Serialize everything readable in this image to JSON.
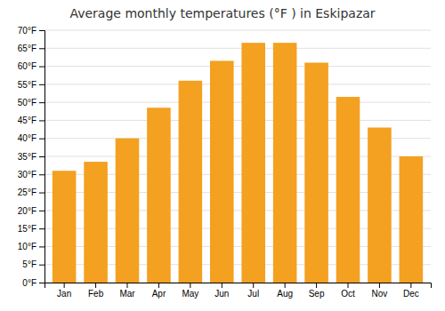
{
  "chart_data": {
    "type": "bar",
    "title": "Average monthly temperatures (°F ) in Eskipazar",
    "categories": [
      "Jan",
      "Feb",
      "Mar",
      "Apr",
      "May",
      "Jun",
      "Jul",
      "Aug",
      "Sep",
      "Oct",
      "Nov",
      "Dec"
    ],
    "values": [
      31,
      33.5,
      40,
      48.5,
      56,
      61.5,
      66.5,
      66.5,
      61,
      51.5,
      43,
      35
    ],
    "color": "#F4A020",
    "ylim": [
      0,
      70
    ],
    "yticks": [
      {
        "value": 0,
        "label": "0°F"
      },
      {
        "value": 5,
        "label": "5°F"
      },
      {
        "value": 10,
        "label": "10°F"
      },
      {
        "value": 15,
        "label": "15°F"
      },
      {
        "value": 20,
        "label": "20°F"
      },
      {
        "value": 25,
        "label": "25°F"
      },
      {
        "value": 30,
        "label": "30°F"
      },
      {
        "value": 35,
        "label": "35°F"
      },
      {
        "value": 40,
        "label": "40°F"
      },
      {
        "value": 45,
        "label": "45°F"
      },
      {
        "value": 50,
        "label": "50°F"
      },
      {
        "value": 55,
        "label": "55°F"
      },
      {
        "value": 60,
        "label": "60°F"
      },
      {
        "value": 65,
        "label": "65°F"
      },
      {
        "value": 70,
        "label": "70°F"
      }
    ],
    "grid": true
  }
}
